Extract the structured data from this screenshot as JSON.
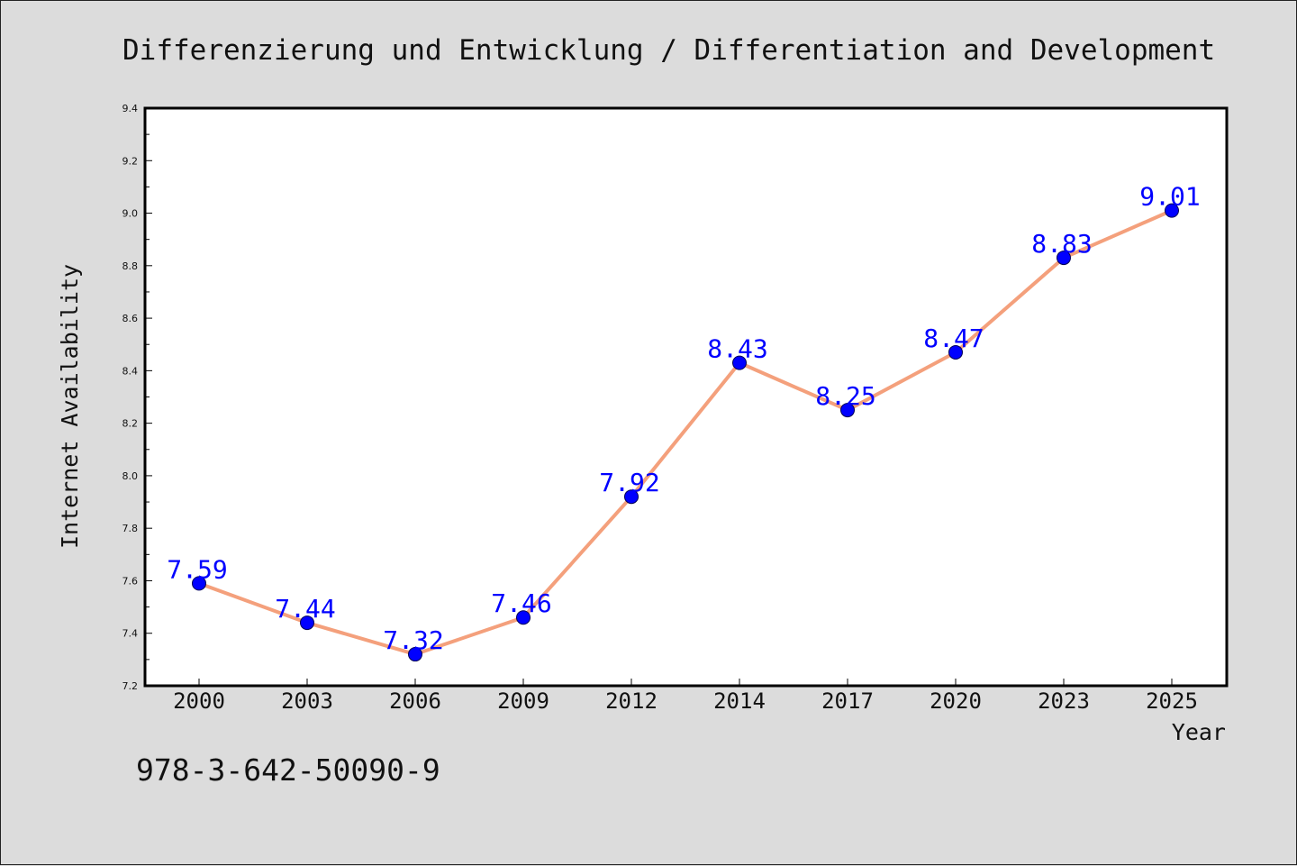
{
  "chart_data": {
    "type": "line",
    "title": "Differenzierung und Entwicklung / Differentiation and Development",
    "xlabel": "Year",
    "ylabel": "Internet Availability",
    "categories": [
      "2000",
      "2003",
      "2006",
      "2009",
      "2012",
      "2014",
      "2017",
      "2020",
      "2023",
      "2025"
    ],
    "series": [
      {
        "values": [
          7.59,
          7.44,
          7.32,
          7.46,
          7.92,
          8.43,
          8.25,
          8.47,
          8.83,
          9.01
        ]
      }
    ],
    "data_labels": [
      "7.59",
      "7.44",
      "7.32",
      "7.46",
      "7.92",
      "8.43",
      "8.25",
      "8.47",
      "8.83",
      "9.01"
    ],
    "ylim": [
      7.2,
      9.4
    ],
    "yticks": [
      "7.2",
      "7.4",
      "7.6",
      "7.8",
      "8.0",
      "8.2",
      "8.4",
      "8.6",
      "8.8",
      "9.0",
      "9.2",
      "9.4"
    ],
    "grid": false,
    "line_color": "#f4a07c",
    "marker_color": "#0000ff",
    "label_color": "#0000ff"
  },
  "footer": {
    "isbn": "978-3-642-50090-9"
  }
}
